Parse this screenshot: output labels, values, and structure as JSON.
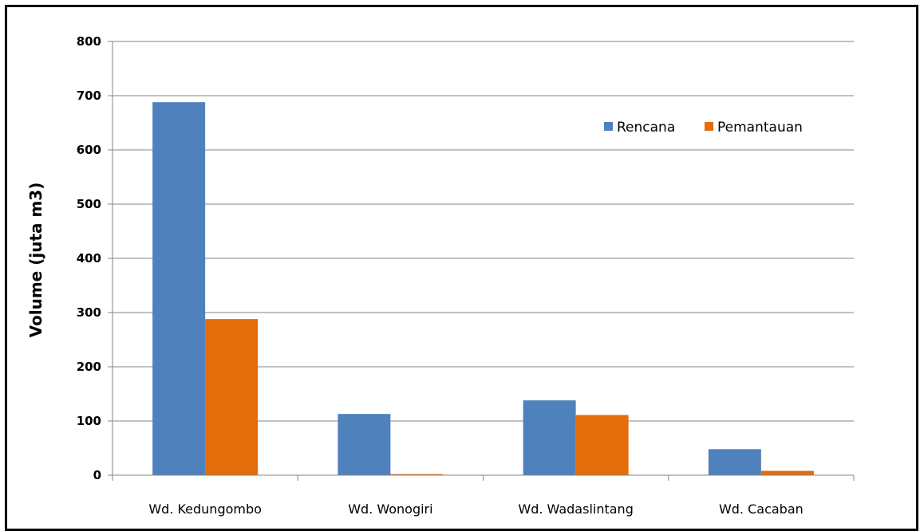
{
  "chart_data": {
    "type": "bar",
    "categories": [
      "Wd. Kedungombo",
      "Wd. Wonogiri",
      "Wd. Wadaslintang",
      "Wd. Cacaban"
    ],
    "series": [
      {
        "name": "Rencana",
        "color": "#4f81bd",
        "values": [
          688,
          113,
          138,
          48
        ]
      },
      {
        "name": "Pemantauan",
        "color": "#e46c0a",
        "values": [
          288,
          2,
          111,
          8
        ]
      }
    ],
    "ylabel": "Volume (juta m3)",
    "xlabel": "",
    "ylim": [
      0,
      800
    ],
    "yticks": [
      0,
      100,
      200,
      300,
      400,
      500,
      600,
      700,
      800
    ],
    "grid": true,
    "legend_position": "top-right"
  }
}
